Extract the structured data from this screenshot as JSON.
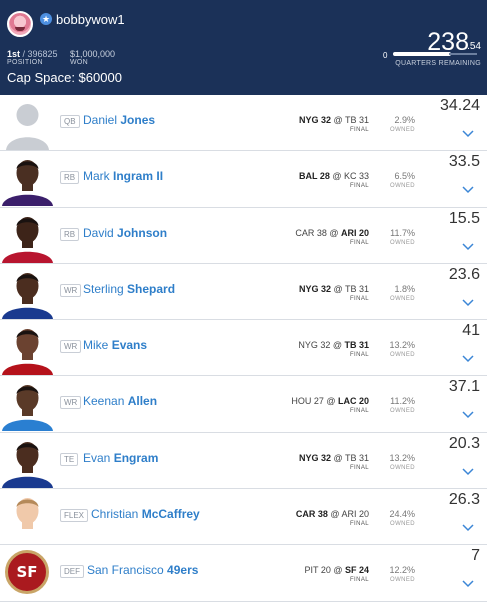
{
  "header": {
    "username": "bobbywow1",
    "position_rank": "1st",
    "position_total": "/ 396825",
    "position_label": "POSITION",
    "won_amount": "$1,000,000",
    "won_label": "WON",
    "cap_space": "Cap Space: $60000",
    "quarters_zero": "0",
    "score_main": "238",
    "score_decimal": ".54",
    "score_label": "QUARTERS REMAINING"
  },
  "colors": {
    "header_bg": "#1b3158",
    "name_link": "#2e7ec9",
    "row_divider": "#d9dde3"
  },
  "roster": [
    {
      "pos": "QB",
      "first": "Daniel",
      "last": "Jones",
      "game_pre": "",
      "game_bold_a": "NYG 32",
      "game_mid": " @ TB 31",
      "game_bold_b": "",
      "game_post": "",
      "status": "FINAL",
      "owned": "2.9%",
      "owned_label": "OWNED",
      "points": "34.24",
      "photo": "silhouette-icon"
    },
    {
      "pos": "RB",
      "first": "Mark",
      "last": "Ingram II",
      "game_pre": "",
      "game_bold_a": "BAL 28",
      "game_mid": " @ KC 33",
      "game_bold_b": "",
      "game_post": "",
      "status": "FINAL",
      "owned": "6.5%",
      "owned_label": "OWNED",
      "points": "33.5",
      "photo": "ravens"
    },
    {
      "pos": "RB",
      "first": "David",
      "last": "Johnson",
      "game_pre": "CAR 38 @ ",
      "game_bold_a": "",
      "game_mid": "",
      "game_bold_b": "ARI 20",
      "game_post": "",
      "status": "FINAL",
      "owned": "11.7%",
      "owned_label": "OWNED",
      "points": "15.5",
      "photo": "cardinals"
    },
    {
      "pos": "WR",
      "first": "Sterling",
      "last": "Shepard",
      "game_pre": "",
      "game_bold_a": "NYG 32",
      "game_mid": " @ TB 31",
      "game_bold_b": "",
      "game_post": "",
      "status": "FINAL",
      "owned": "1.8%",
      "owned_label": "OWNED",
      "points": "23.6",
      "photo": "giants"
    },
    {
      "pos": "WR",
      "first": "Mike",
      "last": "Evans",
      "game_pre": "NYG 32 @ ",
      "game_bold_a": "",
      "game_mid": "",
      "game_bold_b": "TB 31",
      "game_post": "",
      "status": "FINAL",
      "owned": "13.2%",
      "owned_label": "OWNED",
      "points": "41",
      "photo": "bucs"
    },
    {
      "pos": "WR",
      "first": "Keenan",
      "last": "Allen",
      "game_pre": "HOU 27 @ ",
      "game_bold_a": "",
      "game_mid": "",
      "game_bold_b": "LAC 20",
      "game_post": "",
      "status": "FINAL",
      "owned": "11.2%",
      "owned_label": "OWNED",
      "points": "37.1",
      "photo": "chargers"
    },
    {
      "pos": "TE",
      "first": "Evan",
      "last": "Engram",
      "game_pre": "",
      "game_bold_a": "NYG 32",
      "game_mid": " @ TB 31",
      "game_bold_b": "",
      "game_post": "",
      "status": "FINAL",
      "owned": "13.2%",
      "owned_label": "OWNED",
      "points": "20.3",
      "photo": "giants"
    },
    {
      "pos": "FLEX",
      "first": "Christian",
      "last": "McCaffrey",
      "game_pre": "",
      "game_bold_a": "CAR 38",
      "game_mid": " @ ARI 20",
      "game_bold_b": "",
      "game_post": "",
      "status": "FINAL",
      "owned": "24.4%",
      "owned_label": "OWNED",
      "points": "26.3",
      "photo": "panthers"
    },
    {
      "pos": "DEF",
      "first": "San Francisco",
      "last": "49ers",
      "game_pre": "PIT 20 @ ",
      "game_bold_a": "",
      "game_mid": "",
      "game_bold_b": "SF 24",
      "game_post": "",
      "status": "FINAL",
      "owned": "12.2%",
      "owned_label": "OWNED",
      "points": "7",
      "photo": "sf-logo",
      "logo_text": "SF"
    }
  ]
}
